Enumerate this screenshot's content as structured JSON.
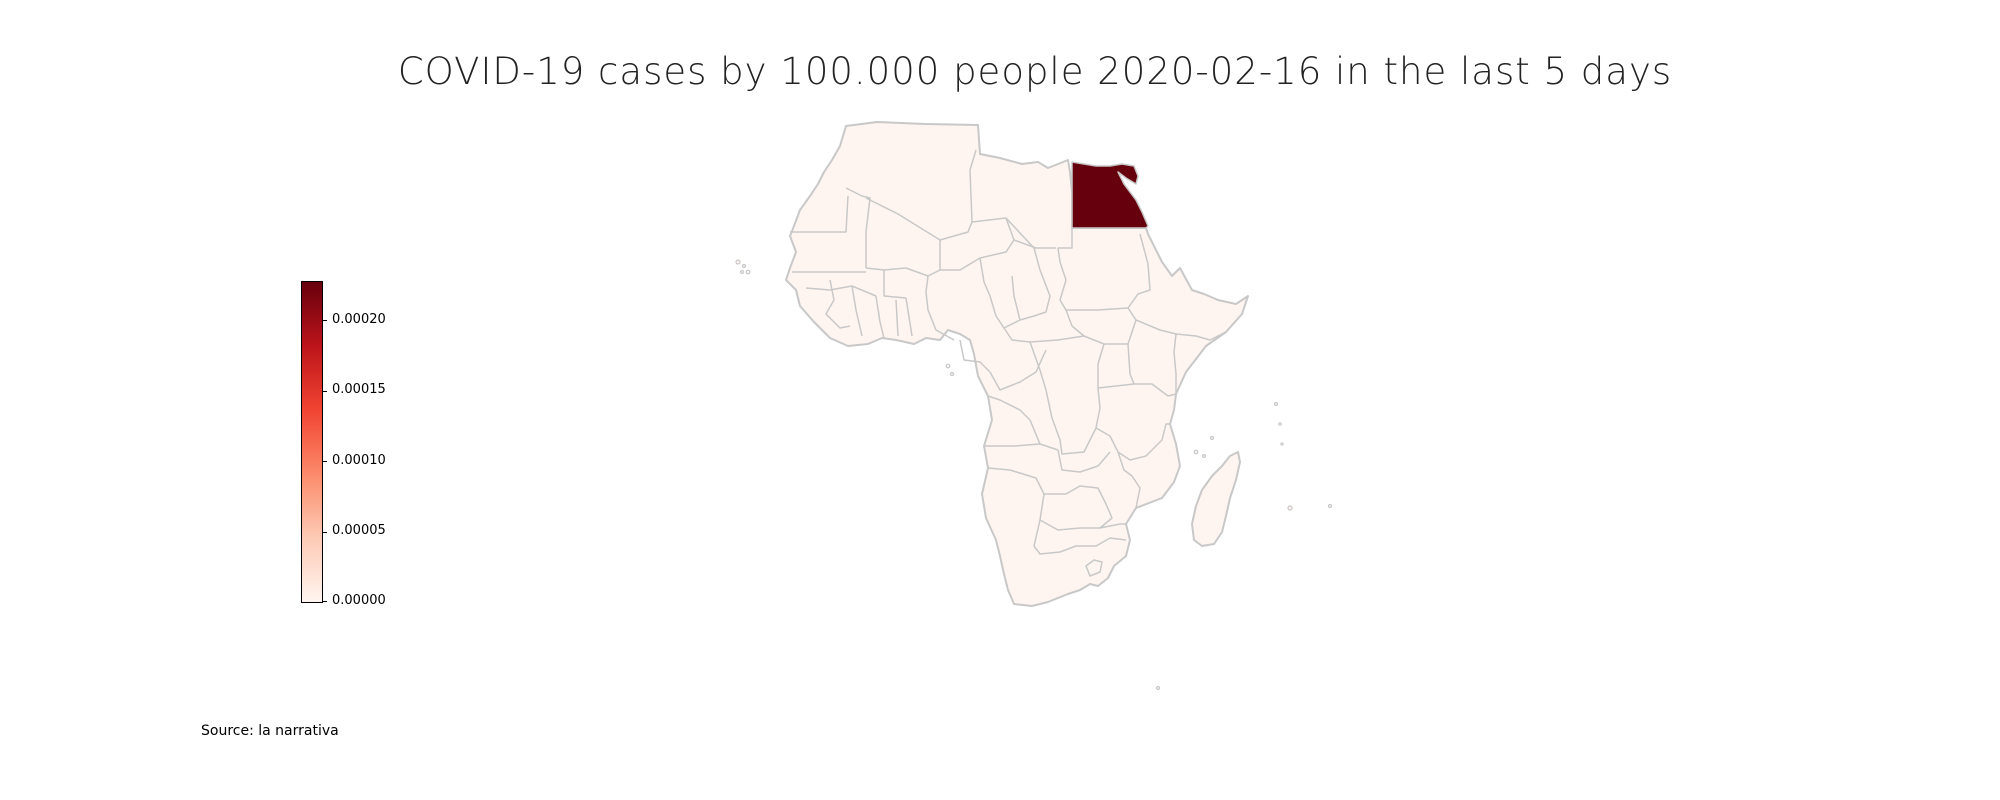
{
  "title": "COVID-19 cases by 100.000 people 2020-02-16 in the last 5 days",
  "source": "Source: la narrativa",
  "colors": {
    "land": "#fff5f0",
    "border": "#c8c8c8",
    "highlight": "#67000d"
  },
  "colorbar": {
    "ticks": [
      "0.00000",
      "0.00005",
      "0.00010",
      "0.00015",
      "0.00020"
    ],
    "tick_values": [
      0,
      5e-05,
      0.0001,
      0.00015,
      0.0002
    ],
    "range": [
      0,
      0.000232
    ],
    "colormap": "Reds"
  },
  "regions": [
    {
      "name": "Egypt",
      "value": 0.000232,
      "color": "#67000d"
    }
  ]
}
